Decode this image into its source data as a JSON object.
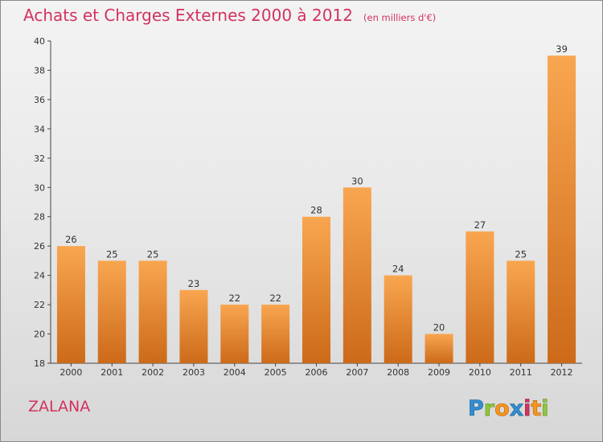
{
  "page": {
    "title": "Achats et Charges Externes 2000 à 2012",
    "unit_note": "(en milliers d'€)",
    "commune": "ZALANA",
    "logo_text": "Proxiti",
    "colors": {
      "title": "#d1335f",
      "bar_light": "#f9a650",
      "bar_dark": "#cc6a19",
      "axis": "#444444"
    }
  },
  "chart_data": {
    "type": "bar",
    "title": "Achats et Charges Externes 2000 à 2012",
    "subtitle": "(en milliers d'€)",
    "xlabel": "",
    "ylabel": "",
    "categories": [
      "2000",
      "2001",
      "2002",
      "2003",
      "2004",
      "2005",
      "2006",
      "2007",
      "2008",
      "2009",
      "2010",
      "2011",
      "2012"
    ],
    "values": [
      26,
      25,
      25,
      23,
      22,
      22,
      28,
      30,
      24,
      20,
      27,
      25,
      39
    ],
    "ylim": [
      18,
      40
    ],
    "yticks": [
      18,
      20,
      22,
      24,
      26,
      28,
      30,
      32,
      34,
      36,
      38,
      40
    ],
    "grid": false,
    "data_labels": true,
    "legend": "none"
  }
}
